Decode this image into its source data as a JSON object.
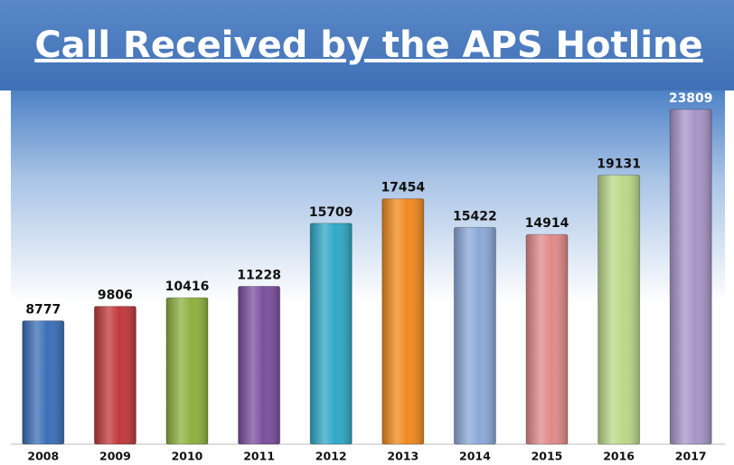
{
  "chart_data": {
    "type": "bar",
    "title": "Call Received by the APS Hotline",
    "categories": [
      "2008",
      "2009",
      "2010",
      "2011",
      "2012",
      "2013",
      "2014",
      "2015",
      "2016",
      "2017"
    ],
    "values": [
      8777,
      9806,
      10416,
      11228,
      15709,
      17454,
      15422,
      14914,
      19131,
      23809
    ],
    "colors": [
      "#3a6fb8",
      "#c0393b",
      "#8db13f",
      "#7a4f9e",
      "#2fa9c6",
      "#f08a1e",
      "#8aa8d8",
      "#e08a88",
      "#bcd88a",
      "#a895c8"
    ],
    "ylim": [
      0,
      24000
    ]
  }
}
